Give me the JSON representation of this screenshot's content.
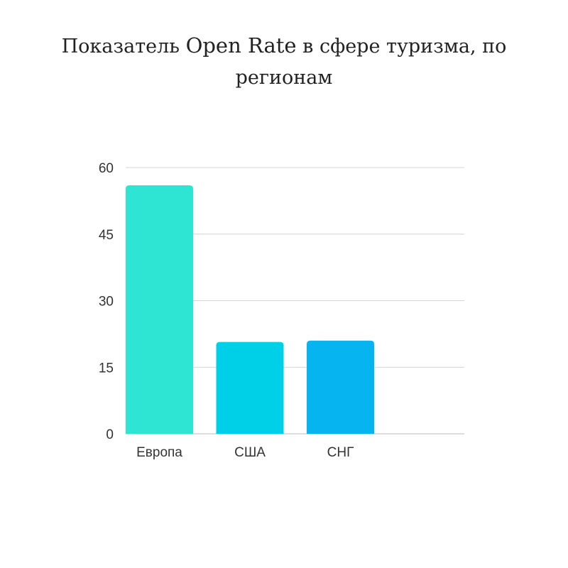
{
  "title": {
    "part1": "Показатель ",
    "part2": "Open Rate",
    "part3": " в сфере туризма, по регионам"
  },
  "chart_data": {
    "type": "bar",
    "categories": [
      "Европа",
      "США",
      "СНГ"
    ],
    "values": [
      56,
      20.7,
      21
    ],
    "colors": [
      "#2ee5d4",
      "#00cfe8",
      "#06b4f0"
    ],
    "yticks": [
      0,
      15,
      30,
      45,
      60
    ],
    "ylim": [
      0,
      60
    ],
    "grid": true,
    "legend": "none"
  }
}
